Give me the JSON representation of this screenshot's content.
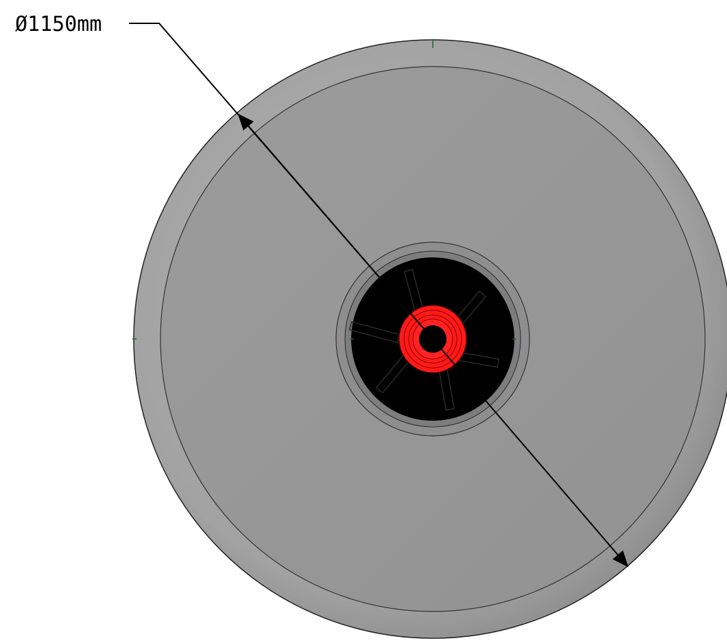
{
  "dimension": {
    "label": "Ø1150mm"
  },
  "colors": {
    "body_fill": "#9a9a9a",
    "rim_fill": "#a4a4a4",
    "hub_fill": "#000000",
    "core_fill": "#ff1a1a",
    "line": "#000000",
    "axis_mark": "#1e6b2a"
  }
}
